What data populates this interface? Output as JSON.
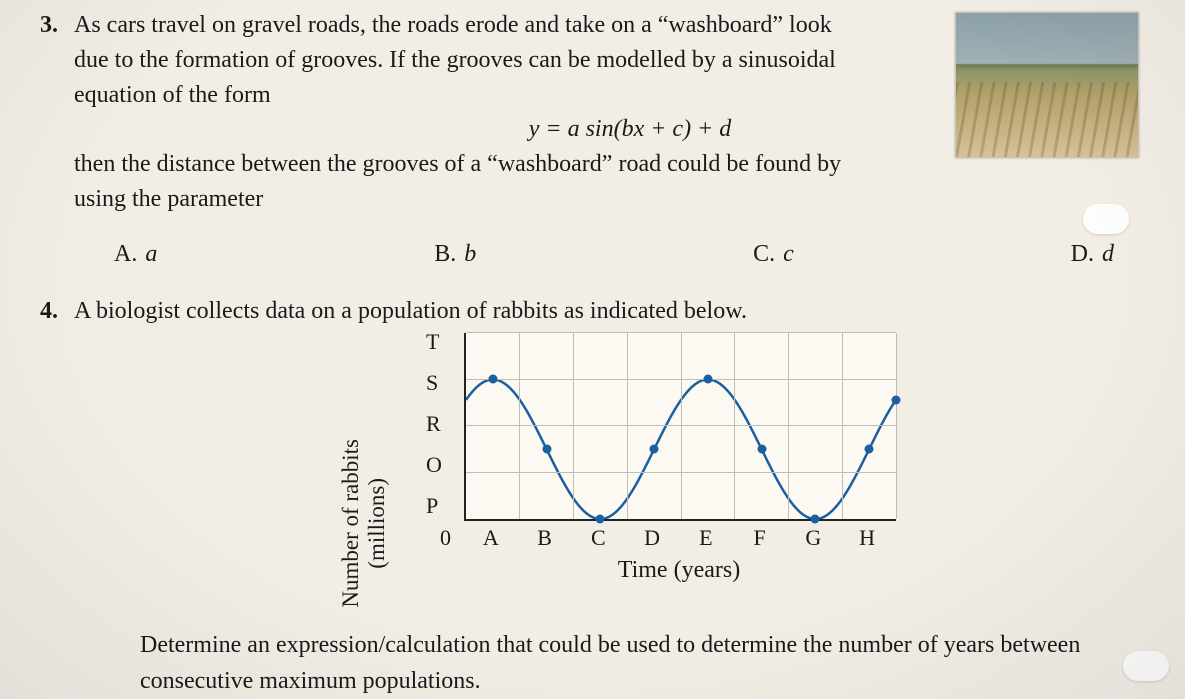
{
  "q3": {
    "number": "3.",
    "text_line1_prefix": "As cars travel on gravel roads, the roads erode and take on a “washboard” look",
    "text_line2": "due to the formation of grooves.  If the grooves can be modelled by a sinusoidal",
    "text_line3": "equation of the form",
    "equation": "y = a sin(bx + c) + d",
    "text_line4": "then the distance between the grooves of a “washboard” road could be found by",
    "text_line5": "using the parameter",
    "choices": [
      {
        "letter": "A.",
        "value": "a"
      },
      {
        "letter": "B.",
        "value": "b"
      },
      {
        "letter": "C.",
        "value": "c"
      },
      {
        "letter": "D.",
        "value": "d"
      }
    ]
  },
  "q4": {
    "number": "4.",
    "intro": "A biologist collects data on a population of rabbits as indicated below.",
    "followup": "Determine an expression/calculation that could be used to determine the number of years between consecutive maximum populations.",
    "chart": {
      "type": "line",
      "ylabel": "Number of rabbits",
      "ylabel_sub": "(millions)",
      "xlabel": "Time (years)",
      "yticks": [
        "T",
        "S",
        "R",
        "O",
        "P"
      ],
      "xticks": [
        "0",
        "A",
        "B",
        "C",
        "D",
        "E",
        "F",
        "G",
        "H"
      ],
      "grid_color": "#bfbdb4",
      "axis_color": "#222222",
      "line_color": "#1a5fa0",
      "marker_color": "#1a5fa0",
      "background_color": "#fbf9f2",
      "line_width": 2.5,
      "marker_size": 9,
      "x_range": [
        0,
        8
      ],
      "y_index_range": [
        0,
        4
      ],
      "amplitude_idx": 1.5,
      "midline_idx": 1.5,
      "period_x": 4,
      "phase_start_x": 0.5,
      "markers_x": [
        0.5,
        1.5,
        2.5,
        3.5,
        4.5,
        5.5,
        6.5,
        7.5,
        8.0
      ]
    }
  },
  "style": {
    "page_bg": "#f2eee6",
    "text_color": "#1a1a1a",
    "font_family": "Times New Roman",
    "body_fontsize": 24
  }
}
